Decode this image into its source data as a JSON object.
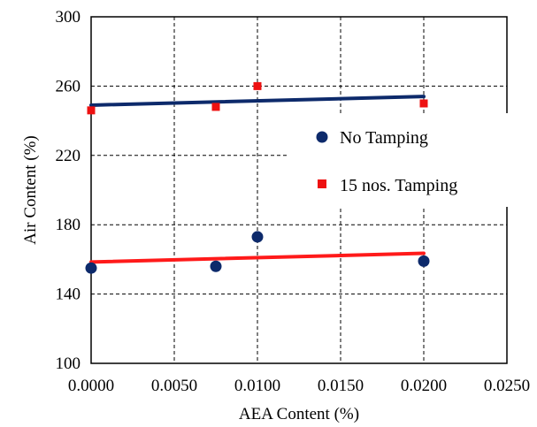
{
  "chart_data": {
    "type": "scatter",
    "xlabel": "AEA Content (%)",
    "ylabel": "Air Content (%)",
    "xlim": [
      0,
      0.025
    ],
    "ylim": [
      100,
      300
    ],
    "x_ticks": [
      "0.0000",
      "0.0050",
      "0.0100",
      "0.0150",
      "0.0200",
      "0.0250"
    ],
    "y_ticks": [
      "100",
      "140",
      "180",
      "220",
      "260",
      "300"
    ],
    "grid": true,
    "legend_position": "right",
    "series": [
      {
        "name": "No Tamping",
        "marker": "circle",
        "color": "#0d2a6b",
        "points": [
          {
            "x": 0.0,
            "y": 155
          },
          {
            "x": 0.0075,
            "y": 156
          },
          {
            "x": 0.01,
            "y": 173
          },
          {
            "x": 0.02,
            "y": 159
          }
        ],
        "trendline": {
          "color": "#ff1a1a",
          "from": {
            "x": 0.0,
            "y": 158.5
          },
          "to": {
            "x": 0.02,
            "y": 163.5
          }
        }
      },
      {
        "name": "15 nos. Tamping",
        "marker": "square",
        "color": "#ee1111",
        "points": [
          {
            "x": 0.0,
            "y": 246
          },
          {
            "x": 0.0075,
            "y": 248
          },
          {
            "x": 0.01,
            "y": 260
          },
          {
            "x": 0.02,
            "y": 250
          }
        ],
        "trendline": {
          "color": "#0d2a6b",
          "from": {
            "x": 0.0,
            "y": 249
          },
          "to": {
            "x": 0.02,
            "y": 254
          }
        }
      }
    ]
  }
}
